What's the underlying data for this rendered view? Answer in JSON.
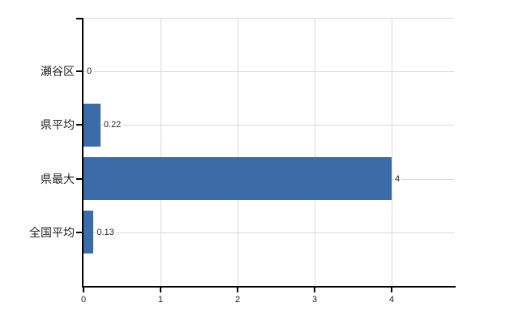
{
  "chart_data": {
    "type": "bar",
    "orientation": "horizontal",
    "title": "",
    "xlabel": "",
    "ylabel": "",
    "categories": [
      "瀬谷区",
      "県平均",
      "県最大",
      "全国平均"
    ],
    "values": [
      0,
      0.22,
      4,
      0.13
    ],
    "value_labels": [
      "0",
      "0.22",
      "4",
      "0.13"
    ],
    "xticks": [
      "0",
      "1",
      "2",
      "3",
      "4"
    ],
    "xtick_values": [
      0,
      1,
      2,
      3,
      4
    ],
    "xlim": [
      0,
      4.81
    ],
    "grid": true,
    "legend": false,
    "colors": {
      "bar": "#3c6ca8",
      "grid": "#d9d9d9",
      "axis": "#000000",
      "text": "#262626",
      "background": "#ffffff"
    }
  }
}
